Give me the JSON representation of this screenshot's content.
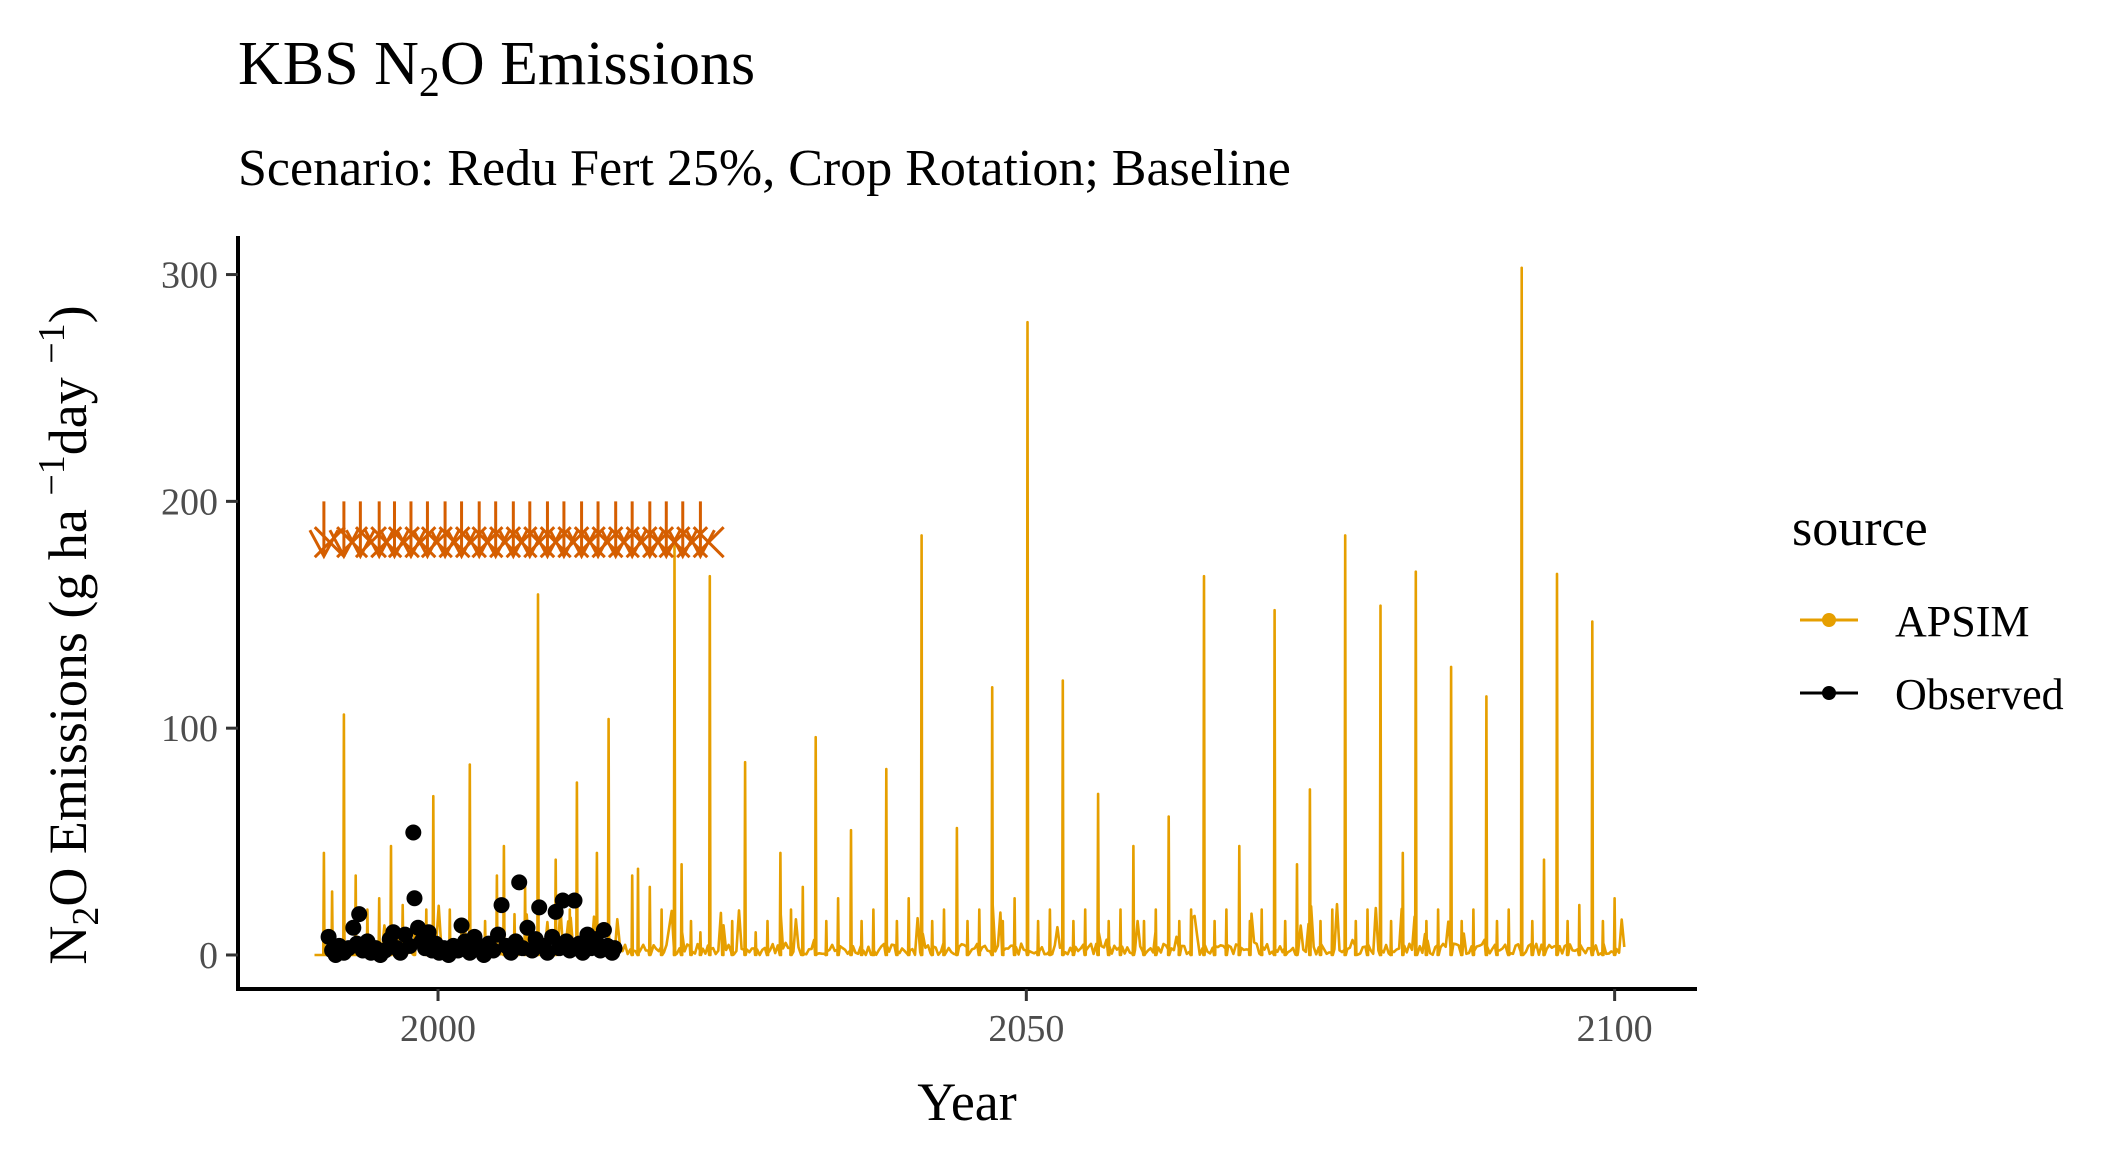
{
  "chart_data": {
    "type": "line",
    "title_prefix": "KBS N",
    "title_sub": "2",
    "title_suffix": "O Emissions",
    "subtitle": "Scenario: Redu Fert 25%, Crop Rotation; Baseline",
    "xlabel": "Year",
    "ylabel": {
      "p1": "N",
      "p2": "2",
      "p3": "O Emissions (g ha ",
      "p4": "−1",
      "p5": "day ",
      "p6": "−1",
      "p7": ")"
    },
    "xlim": [
      1983,
      2107
    ],
    "ylim": [
      -15,
      317
    ],
    "x_ticks": [
      2000,
      2050,
      2100
    ],
    "x_tick_labels": [
      "2000",
      "2050",
      "2100"
    ],
    "y_ticks": [
      0,
      100,
      200,
      300
    ],
    "y_tick_labels": [
      "0",
      "100",
      "200",
      "300"
    ],
    "grid": false,
    "legend": {
      "title": "source",
      "position": "right",
      "entries": [
        {
          "label": "APSIM",
          "color": "#E69F00"
        },
        {
          "label": "Observed",
          "color": "#000000"
        }
      ]
    },
    "series": [
      {
        "name": "APSIM",
        "color": "#E69F00",
        "type": "line",
        "x_range": [
          1989.5,
          2100.9
        ],
        "baseline_values": [
          0,
          5
        ],
        "peaks": [
          {
            "x": 1990.3,
            "y": 45
          },
          {
            "x": 1991.0,
            "y": 28
          },
          {
            "x": 1992.0,
            "y": 106
          },
          {
            "x": 1993.0,
            "y": 35
          },
          {
            "x": 1994.0,
            "y": 20
          },
          {
            "x": 1995.0,
            "y": 25
          },
          {
            "x": 1996.0,
            "y": 48
          },
          {
            "x": 1997.0,
            "y": 22
          },
          {
            "x": 1998.0,
            "y": 12
          },
          {
            "x": 1999.0,
            "y": 20
          },
          {
            "x": 1999.6,
            "y": 70
          },
          {
            "x": 2001.0,
            "y": 20
          },
          {
            "x": 2002.0,
            "y": 15
          },
          {
            "x": 2002.7,
            "y": 84
          },
          {
            "x": 2004.0,
            "y": 15
          },
          {
            "x": 2005.0,
            "y": 35
          },
          {
            "x": 2005.6,
            "y": 48
          },
          {
            "x": 2006.5,
            "y": 18
          },
          {
            "x": 2007.4,
            "y": 30
          },
          {
            "x": 2008.5,
            "y": 159
          },
          {
            "x": 2010.0,
            "y": 42
          },
          {
            "x": 2011.2,
            "y": 20
          },
          {
            "x": 2011.8,
            "y": 76
          },
          {
            "x": 2013.5,
            "y": 45
          },
          {
            "x": 2014.5,
            "y": 104
          },
          {
            "x": 2016.5,
            "y": 35
          },
          {
            "x": 2017.0,
            "y": 38
          },
          {
            "x": 2018.0,
            "y": 30
          },
          {
            "x": 2019.0,
            "y": 20
          },
          {
            "x": 2020.1,
            "y": 182
          },
          {
            "x": 2020.7,
            "y": 40
          },
          {
            "x": 2021.5,
            "y": 15
          },
          {
            "x": 2022.3,
            "y": 10
          },
          {
            "x": 2023.1,
            "y": 167
          },
          {
            "x": 2024.2,
            "y": 12
          },
          {
            "x": 2025.0,
            "y": 15
          },
          {
            "x": 2026.1,
            "y": 85
          },
          {
            "x": 2027.0,
            "y": 10
          },
          {
            "x": 2028.0,
            "y": 15
          },
          {
            "x": 2029.1,
            "y": 45
          },
          {
            "x": 2030.0,
            "y": 20
          },
          {
            "x": 2031.0,
            "y": 30
          },
          {
            "x": 2032.1,
            "y": 96
          },
          {
            "x": 2033.0,
            "y": 15
          },
          {
            "x": 2034.0,
            "y": 25
          },
          {
            "x": 2035.1,
            "y": 55
          },
          {
            "x": 2036.0,
            "y": 15
          },
          {
            "x": 2037.0,
            "y": 20
          },
          {
            "x": 2038.1,
            "y": 82
          },
          {
            "x": 2039.0,
            "y": 15
          },
          {
            "x": 2040.0,
            "y": 25
          },
          {
            "x": 2041.1,
            "y": 185
          },
          {
            "x": 2042.0,
            "y": 15
          },
          {
            "x": 2043.0,
            "y": 20
          },
          {
            "x": 2044.1,
            "y": 56
          },
          {
            "x": 2045.0,
            "y": 15
          },
          {
            "x": 2046.0,
            "y": 20
          },
          {
            "x": 2047.1,
            "y": 118
          },
          {
            "x": 2048.0,
            "y": 15
          },
          {
            "x": 2049.0,
            "y": 25
          },
          {
            "x": 2050.1,
            "y": 279
          },
          {
            "x": 2051.0,
            "y": 15
          },
          {
            "x": 2052.0,
            "y": 20
          },
          {
            "x": 2053.1,
            "y": 121
          },
          {
            "x": 2054.0,
            "y": 15
          },
          {
            "x": 2055.0,
            "y": 20
          },
          {
            "x": 2056.1,
            "y": 71
          },
          {
            "x": 2057.0,
            "y": 15
          },
          {
            "x": 2058.0,
            "y": 20
          },
          {
            "x": 2059.1,
            "y": 48
          },
          {
            "x": 2060.0,
            "y": 15
          },
          {
            "x": 2061.0,
            "y": 20
          },
          {
            "x": 2062.1,
            "y": 61
          },
          {
            "x": 2063.0,
            "y": 15
          },
          {
            "x": 2064.0,
            "y": 20
          },
          {
            "x": 2065.1,
            "y": 167
          },
          {
            "x": 2066.0,
            "y": 15
          },
          {
            "x": 2067.0,
            "y": 20
          },
          {
            "x": 2068.1,
            "y": 48
          },
          {
            "x": 2069.0,
            "y": 15
          },
          {
            "x": 2070.0,
            "y": 20
          },
          {
            "x": 2071.1,
            "y": 152
          },
          {
            "x": 2072.0,
            "y": 15
          },
          {
            "x": 2073.0,
            "y": 40
          },
          {
            "x": 2074.1,
            "y": 73
          },
          {
            "x": 2075.0,
            "y": 15
          },
          {
            "x": 2076.0,
            "y": 20
          },
          {
            "x": 2077.1,
            "y": 185
          },
          {
            "x": 2078.0,
            "y": 15
          },
          {
            "x": 2079.0,
            "y": 20
          },
          {
            "x": 2080.1,
            "y": 154
          },
          {
            "x": 2081.0,
            "y": 15
          },
          {
            "x": 2082.0,
            "y": 45
          },
          {
            "x": 2083.1,
            "y": 169
          },
          {
            "x": 2084.0,
            "y": 15
          },
          {
            "x": 2085.0,
            "y": 20
          },
          {
            "x": 2086.1,
            "y": 127
          },
          {
            "x": 2087.0,
            "y": 15
          },
          {
            "x": 2088.0,
            "y": 20
          },
          {
            "x": 2089.1,
            "y": 114
          },
          {
            "x": 2090.0,
            "y": 15
          },
          {
            "x": 2091.0,
            "y": 20
          },
          {
            "x": 2092.1,
            "y": 303
          },
          {
            "x": 2093.0,
            "y": 15
          },
          {
            "x": 2094.0,
            "y": 42
          },
          {
            "x": 2095.1,
            "y": 168
          },
          {
            "x": 2096.0,
            "y": 15
          },
          {
            "x": 2097.0,
            "y": 22
          },
          {
            "x": 2098.1,
            "y": 147
          },
          {
            "x": 2099.0,
            "y": 15
          },
          {
            "x": 2100.0,
            "y": 25
          }
        ]
      },
      {
        "name": "Observed",
        "color": "#000000",
        "type": "scatter",
        "points": [
          [
            1990.7,
            8
          ],
          [
            1991.0,
            2
          ],
          [
            1991.3,
            0
          ],
          [
            1991.6,
            4
          ],
          [
            1992.0,
            1
          ],
          [
            1992.4,
            3
          ],
          [
            1992.8,
            12
          ],
          [
            1993.1,
            5
          ],
          [
            1993.3,
            18
          ],
          [
            1993.6,
            2
          ],
          [
            1994.0,
            6
          ],
          [
            1994.3,
            1
          ],
          [
            1994.7,
            3
          ],
          [
            1995.1,
            0
          ],
          [
            1995.5,
            2
          ],
          [
            1995.9,
            7
          ],
          [
            1996.2,
            10
          ],
          [
            1996.5,
            3
          ],
          [
            1996.8,
            1
          ],
          [
            1997.2,
            9
          ],
          [
            1997.6,
            4
          ],
          [
            1997.9,
            54
          ],
          [
            1998.0,
            25
          ],
          [
            1998.3,
            12
          ],
          [
            1998.6,
            6
          ],
          [
            1998.9,
            3
          ],
          [
            1999.2,
            10
          ],
          [
            1999.5,
            2
          ],
          [
            1999.8,
            5
          ],
          [
            2000.1,
            1
          ],
          [
            2000.5,
            3
          ],
          [
            2000.9,
            0
          ],
          [
            2001.3,
            4
          ],
          [
            2001.7,
            2
          ],
          [
            2002.0,
            13
          ],
          [
            2002.3,
            6
          ],
          [
            2002.7,
            1
          ],
          [
            2003.1,
            8
          ],
          [
            2003.5,
            3
          ],
          [
            2003.9,
            0
          ],
          [
            2004.3,
            5
          ],
          [
            2004.7,
            2
          ],
          [
            2005.1,
            9
          ],
          [
            2005.4,
            22
          ],
          [
            2005.8,
            4
          ],
          [
            2006.2,
            1
          ],
          [
            2006.6,
            6
          ],
          [
            2006.9,
            32
          ],
          [
            2007.2,
            3
          ],
          [
            2007.6,
            12
          ],
          [
            2008.0,
            2
          ],
          [
            2008.3,
            7
          ],
          [
            2008.6,
            21
          ],
          [
            2009.0,
            4
          ],
          [
            2009.3,
            1
          ],
          [
            2009.7,
            8
          ],
          [
            2010.0,
            19
          ],
          [
            2010.3,
            3
          ],
          [
            2010.6,
            24
          ],
          [
            2010.9,
            6
          ],
          [
            2011.2,
            2
          ],
          [
            2011.6,
            24
          ],
          [
            2012.0,
            5
          ],
          [
            2012.3,
            1
          ],
          [
            2012.7,
            9
          ],
          [
            2013.0,
            3
          ],
          [
            2013.4,
            7
          ],
          [
            2013.8,
            2
          ],
          [
            2014.1,
            11
          ],
          [
            2014.4,
            4
          ],
          [
            2014.8,
            1
          ],
          [
            2015.0,
            3
          ]
        ]
      },
      {
        "name": "",
        "color": "#D55E00",
        "type": "marker",
        "marker_y": 182,
        "events": [
          {
            "x": 1990.3,
            "kind": "arrow"
          },
          {
            "x": 1990.8,
            "kind": "cross"
          },
          {
            "x": 1992.0,
            "kind": "arrow"
          },
          {
            "x": 1992.7,
            "kind": "cross"
          },
          {
            "x": 1993.4,
            "kind": "arrow"
          },
          {
            "x": 1994.3,
            "kind": "cross"
          },
          {
            "x": 1995.0,
            "kind": "arrow"
          },
          {
            "x": 1995.6,
            "kind": "cross"
          },
          {
            "x": 1996.3,
            "kind": "arrow"
          },
          {
            "x": 1997.1,
            "kind": "cross"
          },
          {
            "x": 1997.7,
            "kind": "arrow"
          },
          {
            "x": 1998.5,
            "kind": "cross"
          },
          {
            "x": 1999.1,
            "kind": "arrow"
          },
          {
            "x": 1999.9,
            "kind": "cross"
          },
          {
            "x": 2000.6,
            "kind": "arrow"
          },
          {
            "x": 2001.4,
            "kind": "cross"
          },
          {
            "x": 2002.0,
            "kind": "arrow"
          },
          {
            "x": 2002.8,
            "kind": "cross"
          },
          {
            "x": 2003.5,
            "kind": "arrow"
          },
          {
            "x": 2004.2,
            "kind": "cross"
          },
          {
            "x": 2004.9,
            "kind": "arrow"
          },
          {
            "x": 2005.7,
            "kind": "cross"
          },
          {
            "x": 2006.4,
            "kind": "arrow"
          },
          {
            "x": 2007.1,
            "kind": "cross"
          },
          {
            "x": 2007.8,
            "kind": "arrow"
          },
          {
            "x": 2008.6,
            "kind": "cross"
          },
          {
            "x": 2009.3,
            "kind": "arrow"
          },
          {
            "x": 2010.0,
            "kind": "cross"
          },
          {
            "x": 2010.7,
            "kind": "arrow"
          },
          {
            "x": 2011.5,
            "kind": "cross"
          },
          {
            "x": 2012.2,
            "kind": "arrow"
          },
          {
            "x": 2012.9,
            "kind": "cross"
          },
          {
            "x": 2013.6,
            "kind": "arrow"
          },
          {
            "x": 2014.4,
            "kind": "cross"
          },
          {
            "x": 2015.1,
            "kind": "arrow"
          },
          {
            "x": 2015.8,
            "kind": "cross"
          },
          {
            "x": 2016.5,
            "kind": "arrow"
          },
          {
            "x": 2017.3,
            "kind": "cross"
          },
          {
            "x": 2018.0,
            "kind": "arrow"
          },
          {
            "x": 2018.7,
            "kind": "cross"
          },
          {
            "x": 2019.4,
            "kind": "arrow"
          },
          {
            "x": 2020.1,
            "kind": "cross"
          },
          {
            "x": 2020.8,
            "kind": "arrow"
          },
          {
            "x": 2021.6,
            "kind": "cross"
          },
          {
            "x": 2022.3,
            "kind": "arrow"
          },
          {
            "x": 2023.0,
            "kind": "cross"
          }
        ]
      }
    ]
  }
}
